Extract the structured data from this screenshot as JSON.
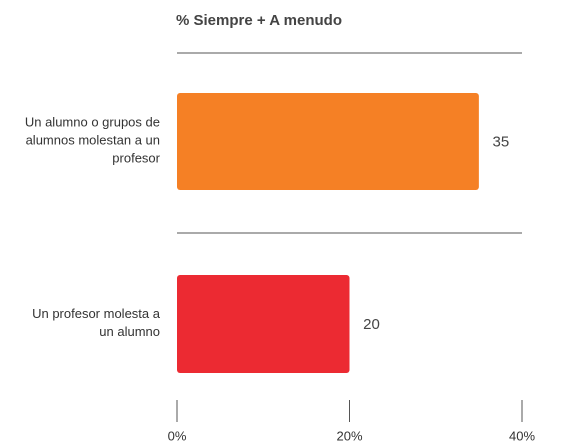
{
  "chart_data": {
    "type": "bar",
    "orientation": "horizontal",
    "title": "% Siempre + A menudo",
    "categories": [
      "Un alumno o grupos de alumnos molestan a un profesor",
      "Un profesor molesta a un alumno"
    ],
    "values": [
      35,
      20
    ],
    "colors": [
      "#f58025",
      "#ec2a32"
    ],
    "xlim": [
      0,
      40
    ],
    "xticks": [
      {
        "value": 0,
        "label": "0%"
      },
      {
        "value": 20,
        "label": "20%"
      },
      {
        "value": 40,
        "label": "40%"
      }
    ]
  }
}
